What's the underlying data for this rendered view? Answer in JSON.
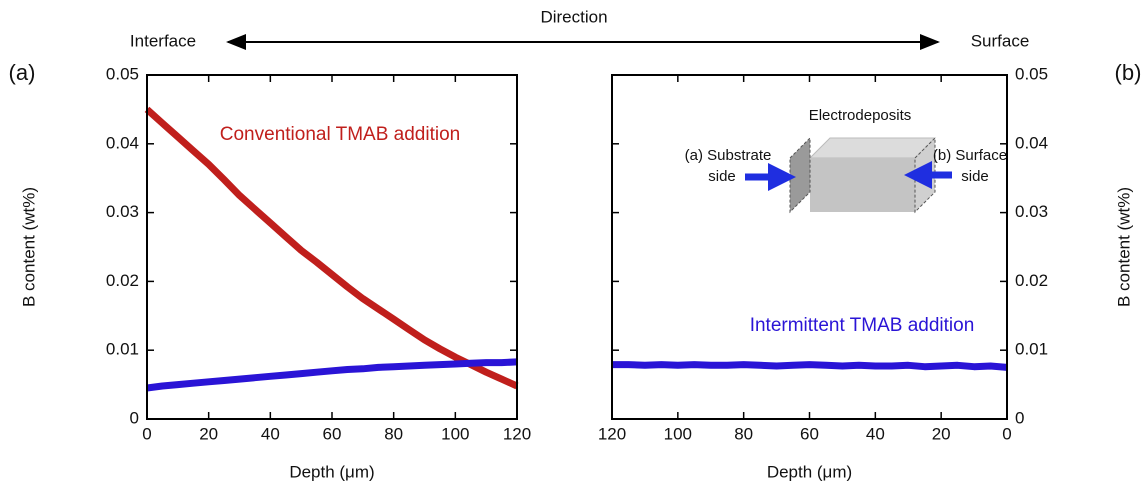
{
  "header": {
    "direction": "Direction",
    "left": "Interface",
    "right": "Surface"
  },
  "chart_data": [
    {
      "type": "line",
      "panel_label": "(a)",
      "ylabel": "B content (wt%)",
      "xlabel": "Depth (μm)",
      "annotation": "Conventional TMAB addition",
      "x": [
        0,
        5,
        10,
        15,
        20,
        25,
        30,
        35,
        40,
        45,
        50,
        55,
        60,
        65,
        70,
        75,
        80,
        85,
        90,
        95,
        100,
        105,
        110,
        115,
        120
      ],
      "series": [
        {
          "name": "Conventional TMAB addition",
          "color": "#c01f1c",
          "values": [
            0.045,
            0.043,
            0.041,
            0.039,
            0.037,
            0.0348,
            0.0325,
            0.0305,
            0.0285,
            0.0265,
            0.0245,
            0.0228,
            0.021,
            0.0192,
            0.0175,
            0.016,
            0.0145,
            0.013,
            0.0115,
            0.0102,
            0.009,
            0.0079,
            0.0068,
            0.0058,
            0.0048
          ]
        },
        {
          "name": "Intermittent TMAB addition",
          "color": "#2a14d6",
          "values": [
            0.0045,
            0.0048,
            0.005,
            0.0052,
            0.0054,
            0.0056,
            0.0058,
            0.006,
            0.0062,
            0.0064,
            0.0066,
            0.0068,
            0.007,
            0.0072,
            0.0073,
            0.0075,
            0.0076,
            0.0077,
            0.0078,
            0.0079,
            0.008,
            0.0081,
            0.0082,
            0.0082,
            0.0083
          ]
        }
      ],
      "xlim": [
        0,
        120
      ],
      "ylim": [
        0,
        0.05
      ],
      "xticks": [
        0,
        20,
        40,
        60,
        80,
        100,
        120
      ],
      "yticks": [
        0,
        0.01,
        0.02,
        0.03,
        0.04,
        0.05
      ]
    },
    {
      "type": "line",
      "panel_label": "(b)",
      "ylabel": "B content (wt%)",
      "xlabel": "Depth (μm)",
      "annotation": "Intermittent TMAB addition",
      "inset": {
        "title": "Electrodeposits",
        "left": [
          "(a) Substrate",
          "side"
        ],
        "right": [
          "(b) Surface",
          "side"
        ]
      },
      "x": [
        0,
        5,
        10,
        15,
        20,
        25,
        30,
        35,
        40,
        45,
        50,
        55,
        60,
        65,
        70,
        75,
        80,
        85,
        90,
        95,
        100,
        105,
        110,
        115,
        120
      ],
      "series": [
        {
          "name": "Intermittent TMAB addition",
          "color": "#2a14d6",
          "values": [
            0.0075,
            0.0077,
            0.0076,
            0.0078,
            0.0077,
            0.0076,
            0.0078,
            0.0077,
            0.0077,
            0.0078,
            0.0077,
            0.0078,
            0.0079,
            0.0078,
            0.0077,
            0.0078,
            0.0079,
            0.0078,
            0.0078,
            0.0079,
            0.0078,
            0.0079,
            0.0078,
            0.0079,
            0.0079
          ]
        }
      ],
      "xlim": [
        120,
        0
      ],
      "ylim": [
        0,
        0.05
      ],
      "xticks": [
        120,
        100,
        80,
        60,
        40,
        20,
        0
      ],
      "yticks": [
        0,
        0.01,
        0.02,
        0.03,
        0.04,
        0.05
      ]
    }
  ]
}
